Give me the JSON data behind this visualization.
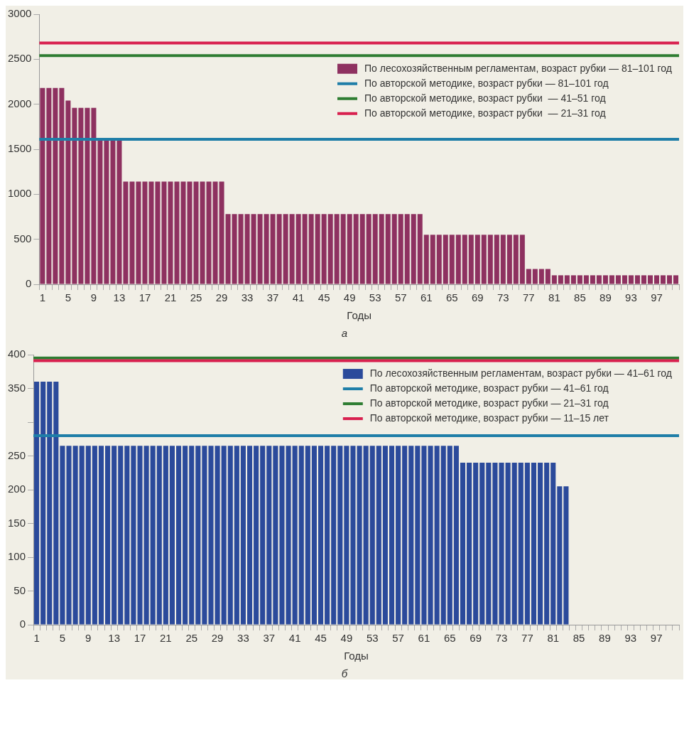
{
  "chart_data": [
    {
      "type": "bar",
      "xlabel": "Годы",
      "annotations": [
        "а"
      ],
      "legend": "top right",
      "grid": false,
      "categories": [
        "1",
        null,
        null,
        null,
        "5",
        null,
        null,
        null,
        "9",
        null,
        null,
        null,
        "13",
        null,
        null,
        null,
        "17",
        null,
        null,
        null,
        "21",
        null,
        null,
        null,
        "25",
        null,
        null,
        null,
        "29",
        null,
        null,
        null,
        "33",
        null,
        null,
        null,
        "37",
        null,
        null,
        null,
        "41",
        null,
        null,
        null,
        "45",
        null,
        null,
        null,
        "49",
        null,
        null,
        null,
        "53",
        null,
        null,
        null,
        "57",
        null,
        null,
        null,
        "61",
        null,
        null,
        null,
        "65",
        null,
        null,
        null,
        "69",
        null,
        null,
        null,
        "73",
        null,
        null,
        null,
        "77",
        null,
        null,
        null,
        "81",
        null,
        null,
        null,
        "85",
        null,
        null,
        null,
        "89",
        null,
        null,
        null,
        "93",
        null,
        null,
        null,
        "97",
        null,
        null,
        null
      ],
      "series": [
        {
          "name": "По лесохозяйственным регламентам, возраст рубки — 81–101 год",
          "color": "#8e3160",
          "values": [
            2180,
            2180,
            2180,
            2180,
            2040,
            1960,
            1960,
            1960,
            1960,
            1600,
            1600,
            1600,
            1600,
            1140,
            1140,
            1140,
            1140,
            1140,
            1140,
            1140,
            1140,
            1140,
            1140,
            1140,
            1140,
            1140,
            1140,
            1140,
            1140,
            780,
            780,
            780,
            780,
            780,
            780,
            780,
            780,
            780,
            780,
            780,
            780,
            780,
            780,
            780,
            780,
            780,
            780,
            780,
            780,
            780,
            780,
            780,
            780,
            780,
            780,
            780,
            780,
            780,
            780,
            780,
            550,
            550,
            550,
            550,
            550,
            550,
            550,
            550,
            550,
            550,
            550,
            550,
            550,
            550,
            550,
            550,
            170,
            170,
            170,
            170,
            100,
            100,
            100,
            100,
            100,
            100,
            100,
            100,
            100,
            100,
            100,
            100,
            100,
            100,
            100,
            100,
            100,
            100,
            100,
            100
          ]
        }
      ],
      "ref_lines": [
        {
          "axis": "y",
          "value": 1610,
          "label": "По авторской методике, возраст рубки — 81–101 год",
          "color": "#1f7ea8"
        },
        {
          "axis": "y",
          "value": 2540,
          "label": "По авторской методике, возраст рубки  — 41–51 год",
          "color": "#2e7d32"
        },
        {
          "axis": "y",
          "value": 2680,
          "label": "По авторской методике, возраст рубки  — 21–31 год",
          "color": "#d8204f"
        }
      ],
      "ylim": [
        0,
        3000
      ],
      "yticks": [
        0,
        500,
        1000,
        1500,
        2000,
        2500,
        3000
      ]
    },
    {
      "type": "bar",
      "xlabel": "Годы",
      "annotations": [
        "б"
      ],
      "legend": "top right",
      "grid": false,
      "categories": [
        "1",
        null,
        null,
        null,
        "5",
        null,
        null,
        null,
        "9",
        null,
        null,
        null,
        "13",
        null,
        null,
        null,
        "17",
        null,
        null,
        null,
        "21",
        null,
        null,
        null,
        "25",
        null,
        null,
        null,
        "29",
        null,
        null,
        null,
        "33",
        null,
        null,
        null,
        "37",
        null,
        null,
        null,
        "41",
        null,
        null,
        null,
        "45",
        null,
        null,
        null,
        "49",
        null,
        null,
        null,
        "53",
        null,
        null,
        null,
        "57",
        null,
        null,
        null,
        "61",
        null,
        null,
        null,
        "65",
        null,
        null,
        null,
        "69",
        null,
        null,
        null,
        "73",
        null,
        null,
        null,
        "77",
        null,
        null,
        null,
        "81",
        null,
        null,
        null,
        "85",
        null,
        null,
        null,
        "89",
        null,
        null,
        null,
        "93",
        null,
        null,
        null,
        "97",
        null,
        null,
        null
      ],
      "series": [
        {
          "name": "По лесохозяйственным регламентам, возраст рубки — 41–61 год",
          "color": "#2b4a9b",
          "values": [
            360,
            360,
            360,
            360,
            265,
            265,
            265,
            265,
            265,
            265,
            265,
            265,
            265,
            265,
            265,
            265,
            265,
            265,
            265,
            265,
            265,
            265,
            265,
            265,
            265,
            265,
            265,
            265,
            265,
            265,
            265,
            265,
            265,
            265,
            265,
            265,
            265,
            265,
            265,
            265,
            265,
            265,
            265,
            265,
            265,
            265,
            265,
            265,
            265,
            265,
            265,
            265,
            265,
            265,
            265,
            265,
            265,
            265,
            265,
            265,
            265,
            265,
            265,
            265,
            265,
            265,
            240,
            240,
            240,
            240,
            240,
            240,
            240,
            240,
            240,
            240,
            240,
            240,
            240,
            240,
            240,
            205,
            205,
            0,
            0,
            0,
            0,
            0,
            0,
            0,
            0,
            0,
            0,
            0,
            0,
            0,
            0,
            0,
            0,
            0
          ]
        }
      ],
      "ref_lines": [
        {
          "axis": "y",
          "value": 280,
          "label": "По авторской методике, возраст рубки — 41–61 год",
          "color": "#1f7ea8"
        },
        {
          "axis": "y",
          "value": 395,
          "label": "По авторской методике, возраст рубки — 21–31 год",
          "color": "#2e7d32"
        },
        {
          "axis": "y",
          "value": 391,
          "label": "По авторской методике, возраст рубки — 11–15 лет",
          "color": "#d8204f"
        }
      ],
      "ylim": [
        0,
        400
      ],
      "yticks": [
        0,
        50,
        100,
        150,
        200,
        250,
        {
          "value": 300,
          "label": null
        },
        350,
        400
      ]
    }
  ]
}
